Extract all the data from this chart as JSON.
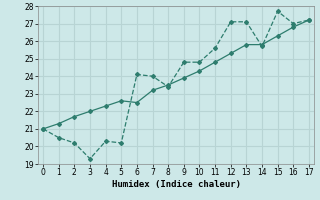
{
  "xlabel": "Humidex (Indice chaleur)",
  "x": [
    0,
    1,
    2,
    3,
    4,
    5,
    6,
    7,
    8,
    9,
    10,
    11,
    12,
    13,
    14,
    15,
    16,
    17
  ],
  "line1_y": [
    21.0,
    20.5,
    20.2,
    19.3,
    20.3,
    20.2,
    24.1,
    24.0,
    23.4,
    24.8,
    24.8,
    25.6,
    27.1,
    27.1,
    25.7,
    27.7,
    27.0,
    27.2
  ],
  "line2_y": [
    21.0,
    21.3,
    21.7,
    22.0,
    22.3,
    22.6,
    22.5,
    23.2,
    23.5,
    23.9,
    24.3,
    24.8,
    25.3,
    25.8,
    25.8,
    26.3,
    26.8,
    27.2
  ],
  "line_color": "#2e7d6e",
  "bg_color": "#cde8e8",
  "grid_color": "#b8d4d4",
  "ylim": [
    19,
    28
  ],
  "xlim": [
    -0.3,
    17.3
  ],
  "yticks": [
    19,
    20,
    21,
    22,
    23,
    24,
    25,
    26,
    27,
    28
  ],
  "xticks": [
    0,
    1,
    2,
    3,
    4,
    5,
    6,
    7,
    8,
    9,
    10,
    11,
    12,
    13,
    14,
    15,
    16,
    17
  ],
  "tick_fontsize": 5.5,
  "xlabel_fontsize": 6.5
}
